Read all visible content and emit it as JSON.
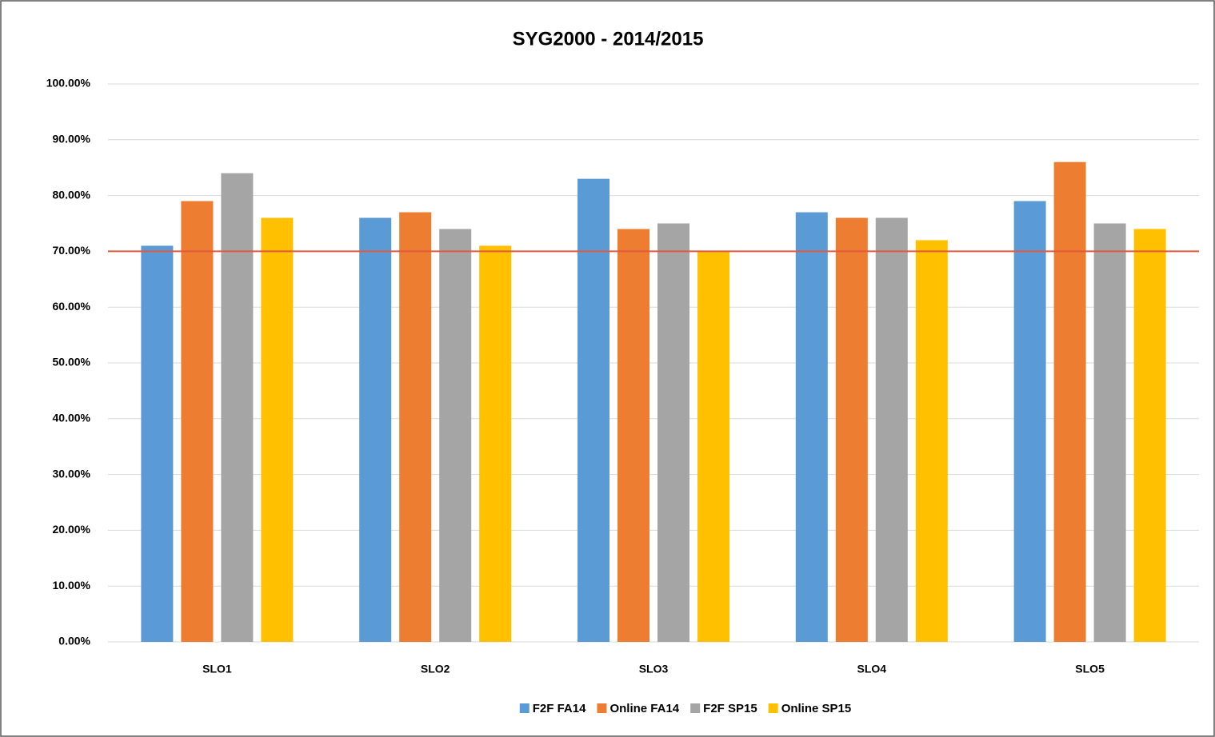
{
  "chart_data": {
    "type": "bar",
    "title": "SYG2000 - 2014/2015",
    "categories": [
      "SLO1",
      "SLO2",
      "SLO3",
      "SLO4",
      "SLO5"
    ],
    "series": [
      {
        "name": "F2F FA14",
        "color": "#5b9bd5",
        "values": [
          71,
          76,
          83,
          77,
          79
        ]
      },
      {
        "name": "Online FA14",
        "color": "#ed7d31",
        "values": [
          79,
          77,
          74,
          76,
          86
        ]
      },
      {
        "name": "F2F SP15",
        "color": "#a5a5a5",
        "values": [
          84,
          74,
          75,
          76,
          75
        ]
      },
      {
        "name": "Online SP15",
        "color": "#ffc000",
        "values": [
          76,
          71,
          70,
          72,
          74
        ]
      }
    ],
    "ylim": [
      0,
      100
    ],
    "yticks": [
      {
        "value": 0,
        "label": "0.00%"
      },
      {
        "value": 10,
        "label": "10.00%"
      },
      {
        "value": 20,
        "label": "20.00%"
      },
      {
        "value": 30,
        "label": "30.00%"
      },
      {
        "value": 40,
        "label": "40.00%"
      },
      {
        "value": 50,
        "label": "50.00%"
      },
      {
        "value": 60,
        "label": "60.00%"
      },
      {
        "value": 70,
        "label": "70.00%"
      },
      {
        "value": 80,
        "label": "80.00%"
      },
      {
        "value": 90,
        "label": "90.00%"
      },
      {
        "value": 100,
        "label": "100.00%"
      }
    ],
    "grid": true,
    "reference_line": {
      "value": 70,
      "color": "#e2583e"
    },
    "legend": "bottom"
  }
}
